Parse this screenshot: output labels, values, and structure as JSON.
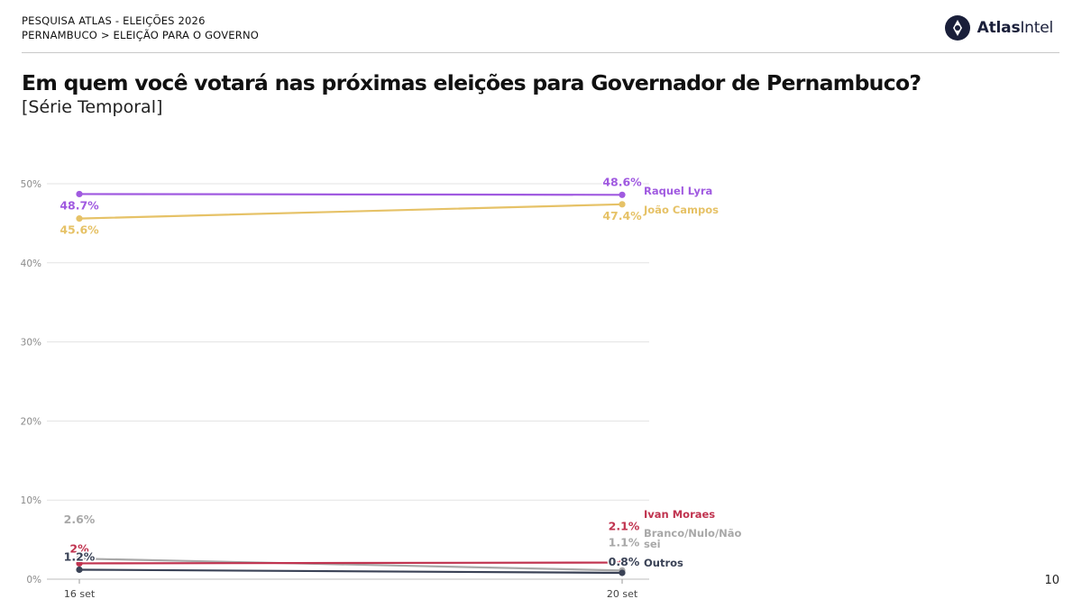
{
  "header": {
    "line1": "PESQUISA ATLAS - ELEIÇÕES 2026",
    "line2": "PERNAMBUCO > ELEIÇÃO PARA O GOVERNO"
  },
  "brand": {
    "bold": "Atlas",
    "regular": "Intel",
    "icon": "atlas-logo-icon"
  },
  "title": "Em quem você votará nas próximas eleições para Governador de Pernambuco?",
  "subtitle": "[Série Temporal]",
  "page_number": "10",
  "chart_data": {
    "type": "line",
    "x": [
      "16 set",
      "20 set"
    ],
    "ylim": [
      0,
      50
    ],
    "yticks": [
      0,
      10,
      20,
      30,
      40,
      50
    ],
    "ytick_labels": [
      "0%",
      "10%",
      "20%",
      "30%",
      "40%",
      "50%"
    ],
    "grid": true,
    "legend": "end-labels",
    "series": [
      {
        "name": "Raquel Lyra",
        "values": [
          48.7,
          48.6
        ],
        "labels": [
          "48.7%",
          "48.6%"
        ],
        "color": "#a05ae0"
      },
      {
        "name": "João Campos",
        "values": [
          45.6,
          47.4
        ],
        "labels": [
          "45.6%",
          "47.4%"
        ],
        "color": "#e6c267"
      },
      {
        "name": "Ivan Moraes",
        "values": [
          2.0,
          2.1
        ],
        "labels": [
          "2%",
          "2.1%"
        ],
        "color": "#c0334f"
      },
      {
        "name": "Branco/Nulo/Não sei",
        "values": [
          2.6,
          1.1
        ],
        "labels": [
          "2.6%",
          "1.1%"
        ],
        "color": "#a8a8a8"
      },
      {
        "name": "Outros",
        "values": [
          1.2,
          0.8
        ],
        "labels": [
          "1.2%",
          "0.8%"
        ],
        "color": "#3a4256"
      }
    ]
  }
}
